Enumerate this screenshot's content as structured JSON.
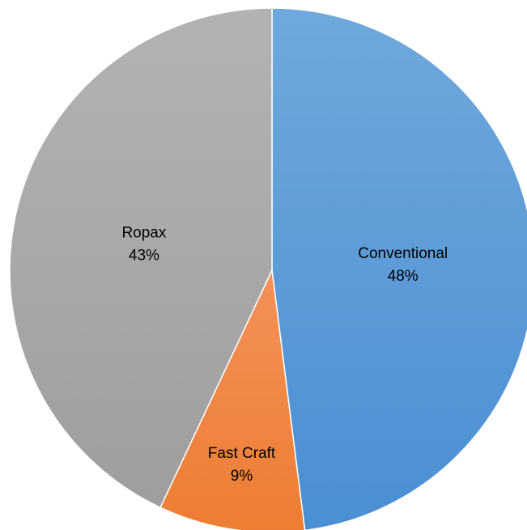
{
  "chart_data": {
    "type": "pie",
    "slices": [
      {
        "label": "Conventional",
        "value": 48,
        "pct_label": "48%",
        "color": "#4a8fd3",
        "color_light": "#6fa8dc"
      },
      {
        "label": "Fast Craft",
        "value": 9,
        "pct_label": "9%",
        "color": "#ed7d31",
        "color_light": "#f4915a"
      },
      {
        "label": "Ropax",
        "value": 43,
        "pct_label": "43%",
        "color": "#9e9e9e",
        "color_light": "#b3b3b3"
      }
    ]
  }
}
